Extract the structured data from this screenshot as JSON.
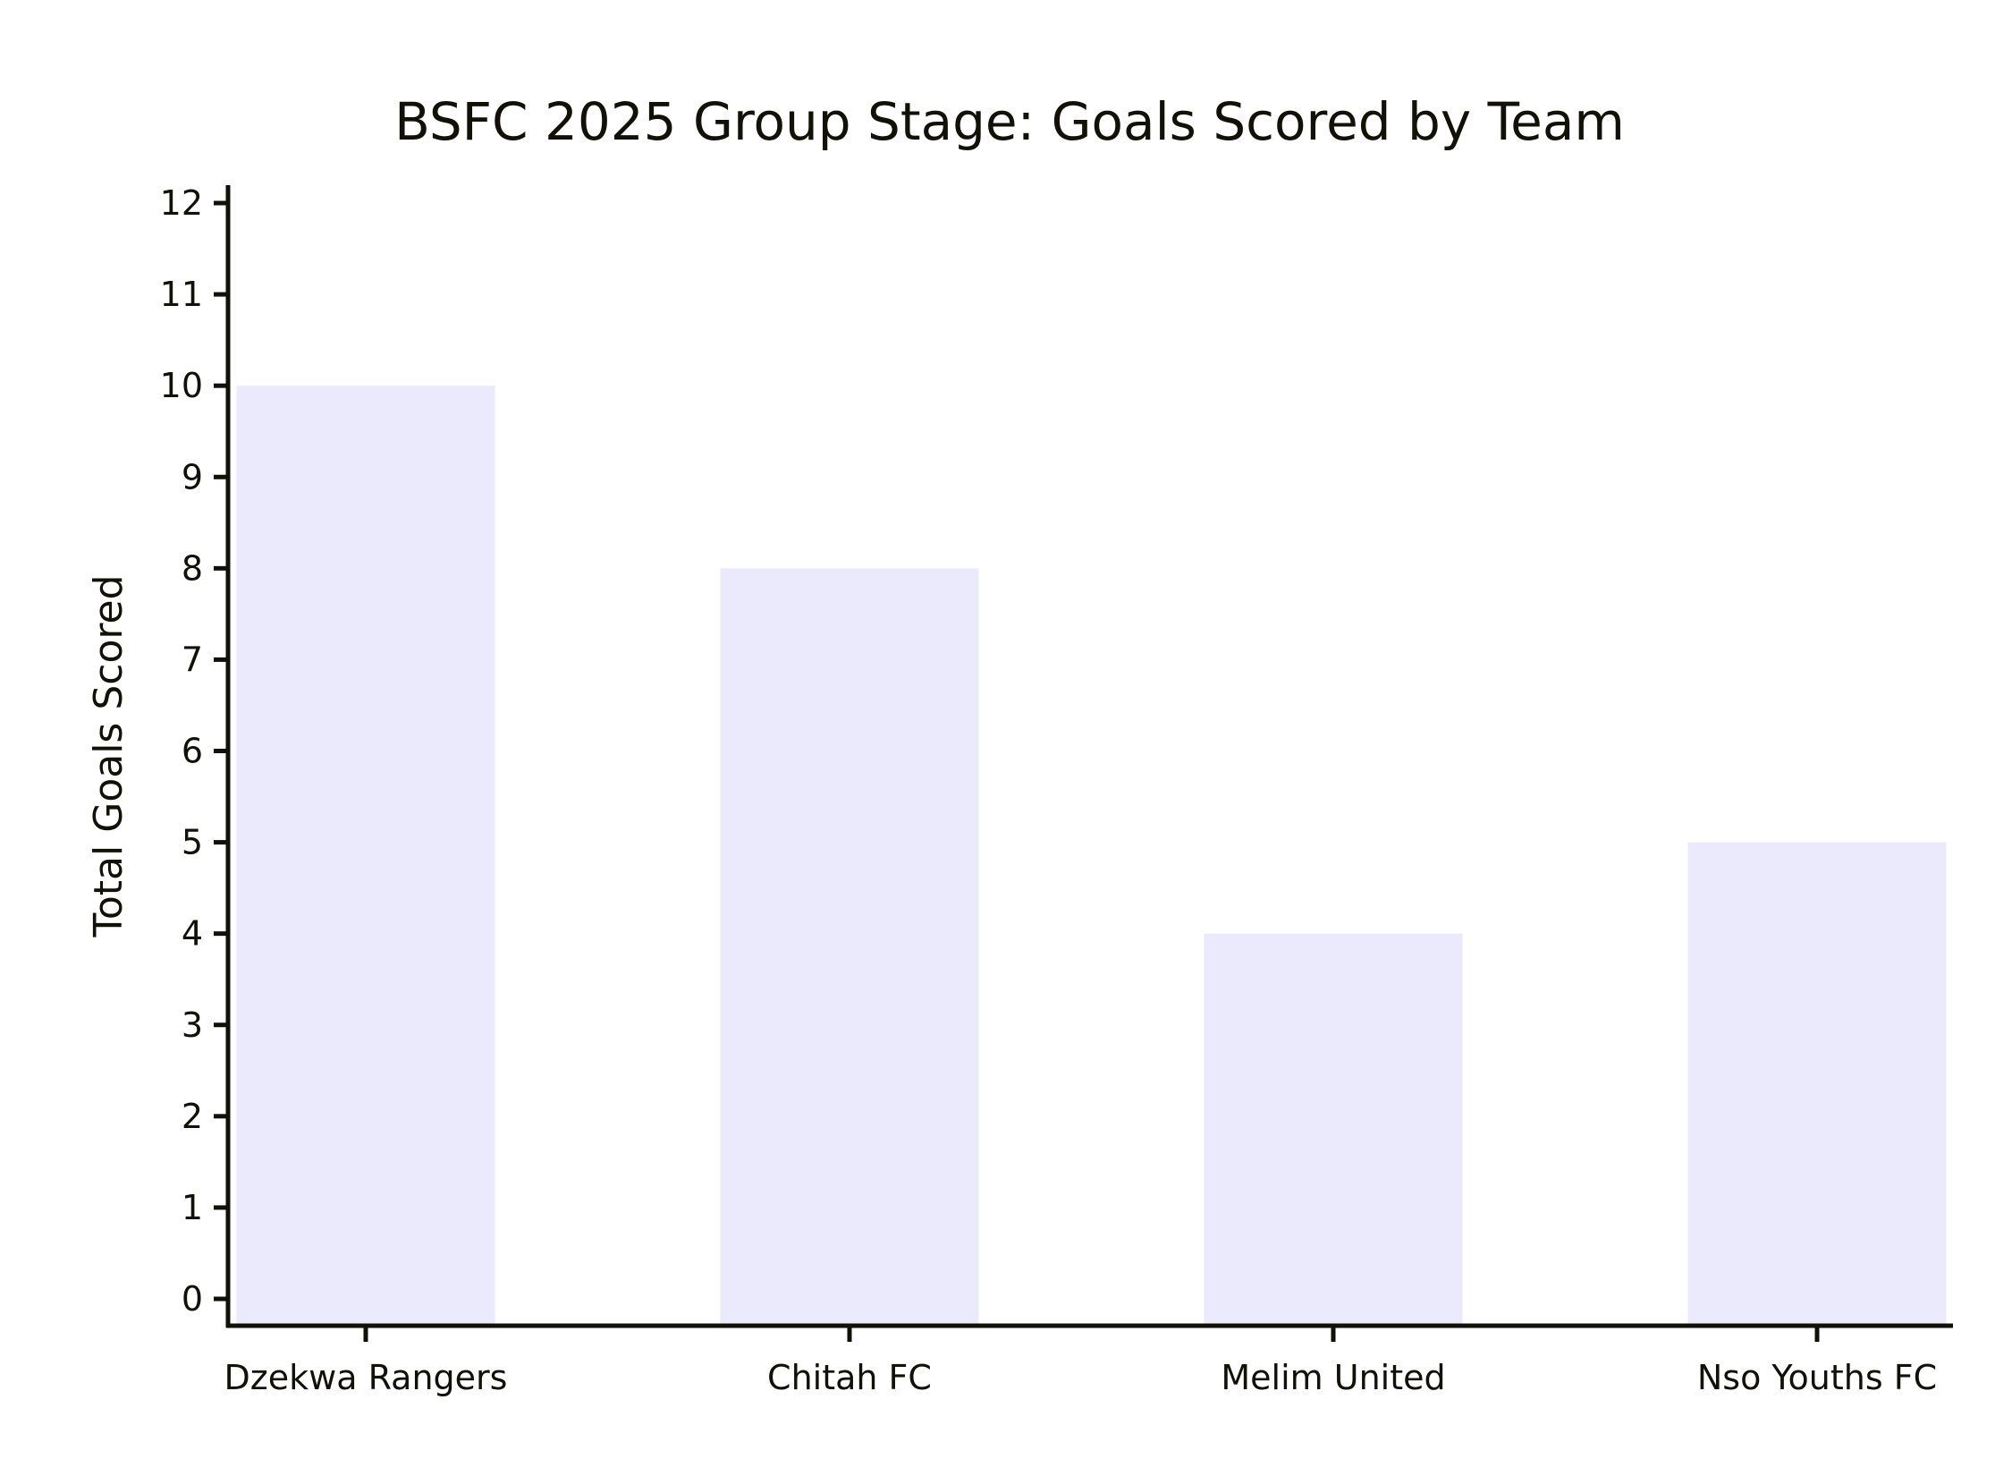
{
  "chart_data": {
    "type": "bar",
    "title": "BSFC 2025 Group Stage: Goals Scored by Team",
    "xlabel": "",
    "ylabel": "Total Goals Scored",
    "categories": [
      "Dzekwa Rangers",
      "Chitah FC",
      "Melim United",
      "Nso Youths FC"
    ],
    "values": [
      10,
      8,
      4,
      5
    ],
    "ylim": [
      0,
      12
    ],
    "yticks": [
      "0",
      "1",
      "2",
      "3",
      "4",
      "5",
      "6",
      "7",
      "8",
      "9",
      "10",
      "11",
      "12"
    ],
    "grid": false,
    "legend": "none",
    "colors": {
      "bar": "#eaeafc",
      "axis": "#111108",
      "text": "#111108"
    }
  }
}
